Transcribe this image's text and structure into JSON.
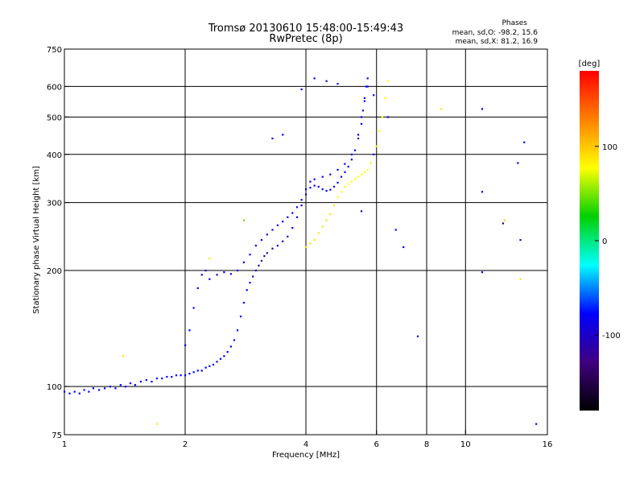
{
  "chart_data": {
    "type": "scatter",
    "title": "Tromsø 20130610 15:48:00-15:49:43",
    "subtitle": "RwPretec (8p)",
    "xlabel": "Frequency [MHz]",
    "ylabel": "Stationary phase Virtual Height [km]",
    "x_scale": "log",
    "y_scale": "log",
    "xlim": [
      1,
      16
    ],
    "ylim": [
      75,
      750
    ],
    "x_ticks": [
      1,
      2,
      4,
      6,
      8,
      10,
      16
    ],
    "y_ticks": [
      75,
      100,
      200,
      300,
      400,
      500,
      600,
      750
    ],
    "x_grid": [
      2,
      4,
      6,
      8,
      10
    ],
    "y_grid": [
      100,
      200,
      300,
      400,
      500,
      600
    ],
    "phase_info": {
      "title": "Phases",
      "line1": "mean, sd,O: -98.2, 15.6",
      "line2": "mean, sd,X:  81.2, 16.9"
    },
    "colorbar": {
      "unit": "[deg]",
      "range": [
        -180,
        180
      ],
      "ticks": [
        100,
        0,
        -100
      ],
      "colors": [
        "#ff0000",
        "#ff8000",
        "#ffff00",
        "#00d000",
        "#00ffff",
        "#0000ff",
        "#400080",
        "#000000"
      ]
    },
    "series": [
      {
        "points": [
          [
            1.0,
            97,
            -100
          ],
          [
            1.03,
            96,
            -100
          ],
          [
            1.06,
            97,
            -100
          ],
          [
            1.09,
            96,
            -100
          ],
          [
            1.12,
            98,
            -100
          ],
          [
            1.15,
            97,
            -100
          ],
          [
            1.18,
            99,
            -100
          ],
          [
            1.22,
            98,
            -100
          ],
          [
            1.26,
            99,
            -100
          ],
          [
            1.3,
            100,
            -100
          ],
          [
            1.34,
            99,
            -100
          ],
          [
            1.38,
            101,
            -100
          ],
          [
            1.42,
            100,
            -100
          ],
          [
            1.46,
            102,
            -100
          ],
          [
            1.5,
            101,
            -100
          ],
          [
            1.55,
            103,
            -100
          ],
          [
            1.6,
            104,
            -100
          ],
          [
            1.65,
            103,
            -100
          ],
          [
            1.7,
            105,
            -100
          ],
          [
            1.75,
            105,
            -100
          ],
          [
            1.8,
            106,
            -100
          ],
          [
            1.85,
            106,
            -100
          ],
          [
            1.9,
            107,
            -100
          ],
          [
            1.95,
            107,
            -100
          ],
          [
            2.0,
            107,
            -100
          ],
          [
            2.05,
            108,
            -100
          ],
          [
            2.1,
            109,
            -100
          ],
          [
            2.15,
            110,
            -100
          ],
          [
            2.2,
            110,
            -100
          ],
          [
            2.25,
            112,
            -100
          ],
          [
            2.3,
            113,
            -100
          ],
          [
            2.35,
            114,
            -100
          ],
          [
            2.4,
            116,
            -100
          ],
          [
            2.45,
            118,
            -100
          ],
          [
            2.5,
            120,
            -100
          ],
          [
            2.55,
            123,
            -100
          ],
          [
            2.6,
            127,
            -100
          ],
          [
            2.65,
            132,
            -100
          ],
          [
            2.7,
            140,
            -100
          ],
          [
            2.75,
            152,
            -100
          ],
          [
            2.8,
            165,
            -100
          ],
          [
            2.85,
            178,
            -100
          ],
          [
            2.9,
            186,
            -100
          ],
          [
            2.95,
            193,
            -110
          ],
          [
            3.0,
            200,
            -120
          ],
          [
            3.05,
            206,
            -120
          ],
          [
            3.1,
            212,
            -130
          ],
          [
            3.15,
            218,
            -120
          ],
          [
            3.2,
            222,
            -120
          ],
          [
            3.3,
            228,
            -110
          ],
          [
            3.4,
            232,
            -110
          ],
          [
            3.5,
            238,
            -110
          ],
          [
            3.6,
            245,
            -110
          ],
          [
            3.7,
            258,
            -110
          ],
          [
            3.8,
            275,
            -100
          ],
          [
            3.9,
            295,
            -100
          ],
          [
            4.0,
            315,
            -100
          ],
          [
            4.1,
            328,
            -100
          ],
          [
            4.2,
            332,
            -100
          ],
          [
            4.3,
            330,
            -100
          ],
          [
            4.4,
            325,
            -100
          ],
          [
            4.5,
            322,
            -100
          ],
          [
            4.6,
            324,
            -100
          ],
          [
            4.7,
            330,
            -100
          ],
          [
            4.8,
            338,
            -100
          ],
          [
            4.9,
            350,
            -100
          ],
          [
            5.0,
            360,
            -100
          ],
          [
            5.1,
            372,
            -100
          ],
          [
            5.2,
            388,
            -100
          ],
          [
            5.3,
            410,
            -100
          ],
          [
            5.4,
            440,
            -100
          ],
          [
            5.5,
            480,
            -100
          ],
          [
            5.55,
            520,
            -100
          ],
          [
            5.6,
            560,
            -100
          ],
          [
            5.65,
            600,
            -100
          ],
          [
            5.7,
            630,
            -100
          ]
        ]
      },
      {
        "points": [
          [
            2.0,
            128,
            -100
          ],
          [
            2.05,
            140,
            -100
          ],
          [
            2.1,
            160,
            -100
          ],
          [
            2.15,
            180,
            -100
          ],
          [
            2.2,
            195,
            -100
          ],
          [
            2.25,
            200,
            -110
          ],
          [
            2.3,
            190,
            -100
          ],
          [
            2.4,
            195,
            -100
          ],
          [
            2.5,
            198,
            -100
          ],
          [
            2.6,
            196,
            -100
          ],
          [
            2.7,
            200,
            -110
          ],
          [
            2.8,
            210,
            -110
          ],
          [
            2.9,
            220,
            -110
          ],
          [
            3.0,
            232,
            -110
          ],
          [
            3.1,
            240,
            -110
          ],
          [
            3.2,
            248,
            -110
          ],
          [
            3.3,
            255,
            -100
          ],
          [
            3.4,
            262,
            -100
          ],
          [
            3.5,
            268,
            -100
          ],
          [
            3.6,
            275,
            -100
          ],
          [
            3.7,
            282,
            -100
          ],
          [
            3.8,
            292,
            -100
          ],
          [
            3.9,
            305,
            -100
          ],
          [
            4.0,
            325,
            -100
          ],
          [
            4.1,
            340,
            -100
          ],
          [
            4.2,
            345,
            -100
          ],
          [
            4.4,
            350,
            -100
          ],
          [
            4.6,
            355,
            -100
          ],
          [
            4.8,
            365,
            -100
          ],
          [
            5.0,
            378,
            -100
          ],
          [
            5.2,
            400,
            -100
          ],
          [
            5.4,
            450,
            -100
          ],
          [
            5.5,
            500,
            -100
          ],
          [
            5.6,
            550,
            -100
          ],
          [
            5.7,
            600,
            -100
          ]
        ]
      },
      {
        "points": [
          [
            4.0,
            230,
            90
          ],
          [
            4.1,
            235,
            90
          ],
          [
            4.2,
            240,
            90
          ],
          [
            4.3,
            250,
            90
          ],
          [
            4.4,
            260,
            90
          ],
          [
            4.5,
            270,
            90
          ],
          [
            4.6,
            280,
            90
          ],
          [
            4.7,
            295,
            90
          ],
          [
            4.8,
            310,
            80
          ],
          [
            4.9,
            320,
            80
          ],
          [
            5.0,
            330,
            80
          ],
          [
            5.1,
            335,
            80
          ],
          [
            5.2,
            340,
            80
          ],
          [
            5.3,
            345,
            80
          ],
          [
            5.4,
            350,
            80
          ],
          [
            5.5,
            355,
            80
          ],
          [
            5.6,
            360,
            80
          ],
          [
            5.7,
            365,
            80
          ],
          [
            5.8,
            380,
            80
          ],
          [
            5.9,
            400,
            80
          ],
          [
            6.0,
            420,
            80
          ],
          [
            6.1,
            460,
            80
          ],
          [
            6.2,
            500,
            80
          ],
          [
            6.3,
            560,
            80
          ],
          [
            6.4,
            620,
            80
          ]
        ]
      },
      {
        "points": [
          [
            4.2,
            630,
            -100
          ],
          [
            4.5,
            620,
            -100
          ],
          [
            4.8,
            610,
            -100
          ],
          [
            3.3,
            440,
            -100
          ],
          [
            3.5,
            450,
            -100
          ],
          [
            3.9,
            590,
            -100
          ],
          [
            5.5,
            285,
            -120
          ],
          [
            6.7,
            255,
            -100
          ],
          [
            7.0,
            230,
            -100
          ],
          [
            7.6,
            135,
            -100
          ],
          [
            11.0,
            525,
            -100
          ],
          [
            11.0,
            198,
            -100
          ],
          [
            11.0,
            320,
            -100
          ],
          [
            13.5,
            380,
            -100
          ],
          [
            13.7,
            240,
            -100
          ],
          [
            14.0,
            430,
            -100
          ],
          [
            15.0,
            80,
            -100
          ],
          [
            12.4,
            265,
            -150
          ],
          [
            12.5,
            270,
            100
          ],
          [
            8.7,
            525,
            90
          ],
          [
            1.4,
            120,
            90
          ],
          [
            1.7,
            80,
            90
          ],
          [
            2.8,
            270,
            30
          ],
          [
            2.3,
            215,
            90
          ],
          [
            13.7,
            190,
            90
          ],
          [
            6.4,
            500,
            -100
          ],
          [
            5.9,
            570,
            -100
          ],
          [
            5.9,
            400,
            -100
          ]
        ]
      }
    ]
  }
}
